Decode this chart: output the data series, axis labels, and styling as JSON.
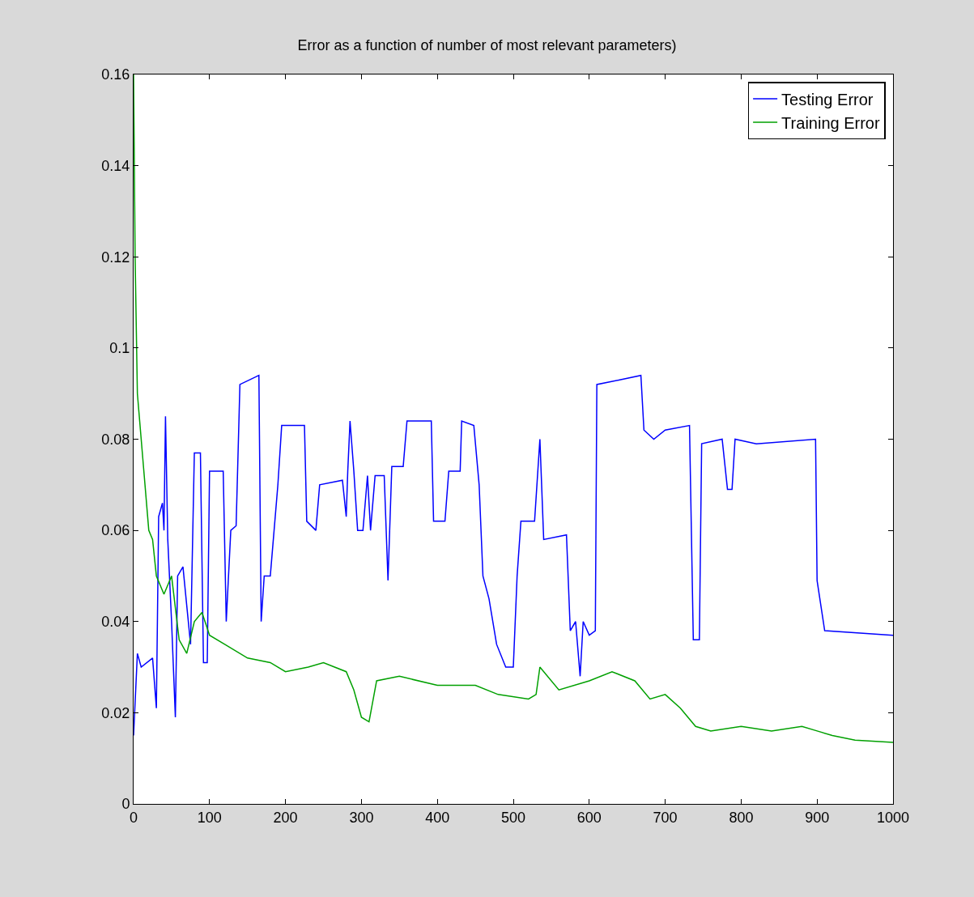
{
  "chart_data": {
    "type": "line",
    "title": "Error as a function of number of most relevant parameters)",
    "xlim": [
      0,
      1000
    ],
    "xticks": [
      0,
      100,
      200,
      300,
      400,
      500,
      600,
      700,
      800,
      900,
      1000
    ],
    "ylim": [
      0,
      0.16
    ],
    "yticks": [
      0,
      0.02,
      0.04,
      0.06,
      0.08,
      0.1,
      0.12,
      0.14,
      0.16
    ],
    "legend": "top right",
    "line_style": "solid",
    "marker": "none",
    "series": [
      {
        "name": "Testing Error",
        "color": "#0000ff",
        "x": [
          0,
          5,
          10,
          25,
          30,
          33,
          38,
          40,
          42,
          45,
          50,
          55,
          58,
          65,
          75,
          80,
          88,
          92,
          97,
          100,
          118,
          122,
          128,
          135,
          140,
          165,
          168,
          172,
          180,
          185,
          190,
          195,
          225,
          228,
          240,
          245,
          275,
          280,
          282,
          285,
          290,
          295,
          302,
          308,
          312,
          318,
          330,
          335,
          340,
          355,
          360,
          392,
          395,
          410,
          415,
          430,
          432,
          448,
          455,
          460,
          468,
          478,
          490,
          500,
          505,
          510,
          528,
          535,
          540,
          570,
          575,
          582,
          588,
          592,
          600,
          608,
          610,
          640,
          668,
          672,
          685,
          700,
          732,
          737,
          745,
          748,
          775,
          782,
          788,
          792,
          820,
          898,
          900,
          910,
          1000
        ],
        "values": [
          0.015,
          0.033,
          0.03,
          0.032,
          0.021,
          0.063,
          0.066,
          0.06,
          0.085,
          0.058,
          0.04,
          0.019,
          0.05,
          0.052,
          0.035,
          0.077,
          0.077,
          0.031,
          0.031,
          0.073,
          0.073,
          0.04,
          0.06,
          0.061,
          0.092,
          0.094,
          0.04,
          0.05,
          0.05,
          0.06,
          0.07,
          0.083,
          0.083,
          0.062,
          0.06,
          0.07,
          0.071,
          0.063,
          0.073,
          0.084,
          0.073,
          0.06,
          0.06,
          0.072,
          0.06,
          0.072,
          0.072,
          0.049,
          0.074,
          0.074,
          0.084,
          0.084,
          0.062,
          0.062,
          0.073,
          0.073,
          0.084,
          0.083,
          0.07,
          0.05,
          0.045,
          0.035,
          0.03,
          0.03,
          0.05,
          0.062,
          0.062,
          0.08,
          0.058,
          0.059,
          0.038,
          0.04,
          0.028,
          0.04,
          0.037,
          0.038,
          0.092,
          0.093,
          0.094,
          0.082,
          0.08,
          0.082,
          0.083,
          0.036,
          0.036,
          0.079,
          0.08,
          0.069,
          0.069,
          0.08,
          0.079,
          0.08,
          0.049,
          0.038,
          0.037
        ]
      },
      {
        "name": "Training Error",
        "color": "#00a000",
        "x": [
          0,
          2,
          5,
          10,
          15,
          20,
          25,
          30,
          40,
          50,
          60,
          70,
          80,
          90,
          100,
          120,
          150,
          180,
          200,
          230,
          250,
          280,
          290,
          300,
          310,
          320,
          350,
          400,
          450,
          480,
          520,
          530,
          535,
          560,
          600,
          630,
          660,
          680,
          700,
          720,
          740,
          760,
          800,
          840,
          880,
          900,
          920,
          950,
          1000
        ],
        "values": [
          0.16,
          0.12,
          0.09,
          0.08,
          0.07,
          0.06,
          0.058,
          0.05,
          0.046,
          0.05,
          0.036,
          0.033,
          0.04,
          0.042,
          0.037,
          0.035,
          0.032,
          0.031,
          0.029,
          0.03,
          0.031,
          0.029,
          0.025,
          0.019,
          0.018,
          0.027,
          0.028,
          0.026,
          0.026,
          0.024,
          0.023,
          0.024,
          0.03,
          0.025,
          0.027,
          0.029,
          0.027,
          0.023,
          0.024,
          0.021,
          0.017,
          0.016,
          0.017,
          0.016,
          0.017,
          0.016,
          0.015,
          0.014,
          0.0135
        ]
      }
    ]
  }
}
